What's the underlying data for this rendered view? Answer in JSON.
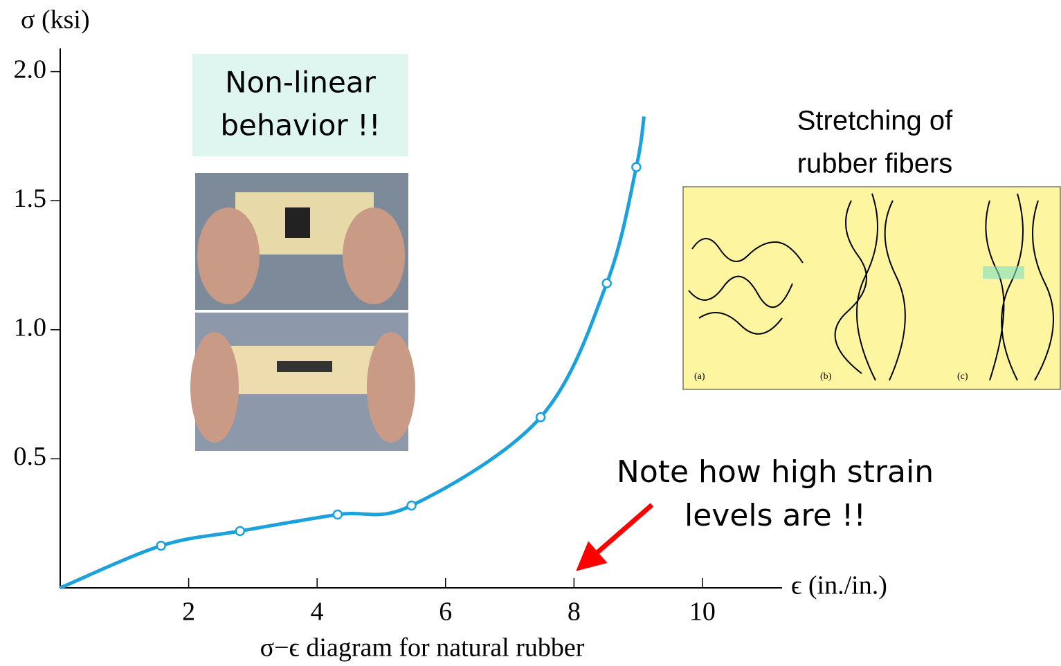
{
  "chart_data": {
    "type": "line",
    "y_label": "σ (ksi)",
    "x_label": "ϵ (in./in.)",
    "caption": "σ−ϵ diagram for natural rubber",
    "x": [
      0,
      1.57,
      2.8,
      4.32,
      5.47,
      7.48,
      8.51,
      8.97,
      9.09
    ],
    "series": [
      {
        "color": "#1ba1dc",
        "values": [
          0,
          0.163,
          0.22,
          0.284,
          0.319,
          0.661,
          1.18,
          1.63,
          1.826
        ]
      }
    ],
    "xlim": [
      0,
      11.24
    ],
    "ylim": [
      0,
      2.09
    ],
    "xticks": [
      2,
      4,
      6,
      8,
      10
    ],
    "yticks": [
      0.5,
      {
        "value": 1.0,
        "label": "1.0"
      },
      1.5,
      {
        "value": 2.0,
        "label": "2.0"
      }
    ],
    "annotations": {
      "behavior": [
        "Non-linear",
        "behavior !!"
      ],
      "stretching": [
        "Stretching of",
        "rubber fibers"
      ],
      "strain": [
        "Note how high strain",
        "levels are !!"
      ],
      "panels": [
        "(a)",
        "(b)",
        "(c)"
      ]
    }
  }
}
